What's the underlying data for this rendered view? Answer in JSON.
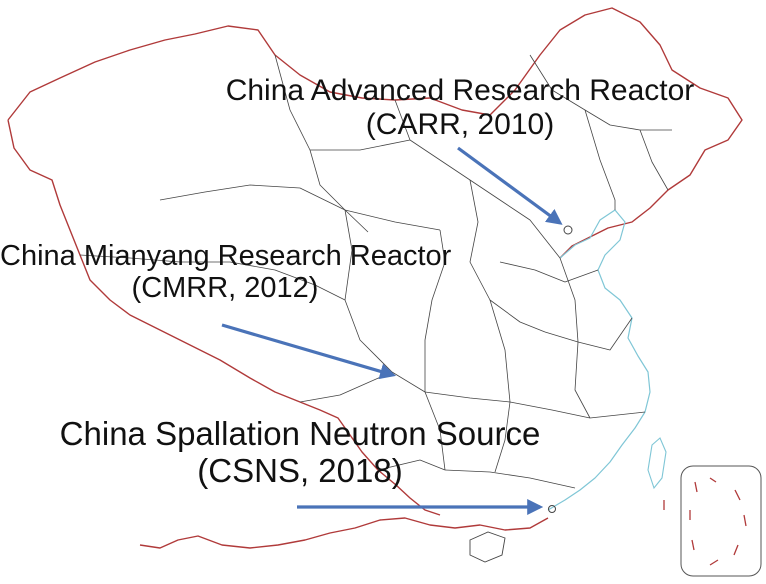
{
  "facilities": [
    {
      "id": "carr",
      "name": "China Advanced Research Reactor",
      "sub": "(CARR, 2010)"
    },
    {
      "id": "cmrr",
      "name": "China Mianyang Research Reactor",
      "sub": "(CMRR, 2012)"
    },
    {
      "id": "csns",
      "name": "China Spallation Neutron Source",
      "sub": "(CSNS, 2018)"
    }
  ],
  "colors": {
    "border": "#b03a3a",
    "province": "#444444",
    "coast": "#7fc6d6",
    "arrow": "#4a73b8",
    "text": "#111111"
  }
}
